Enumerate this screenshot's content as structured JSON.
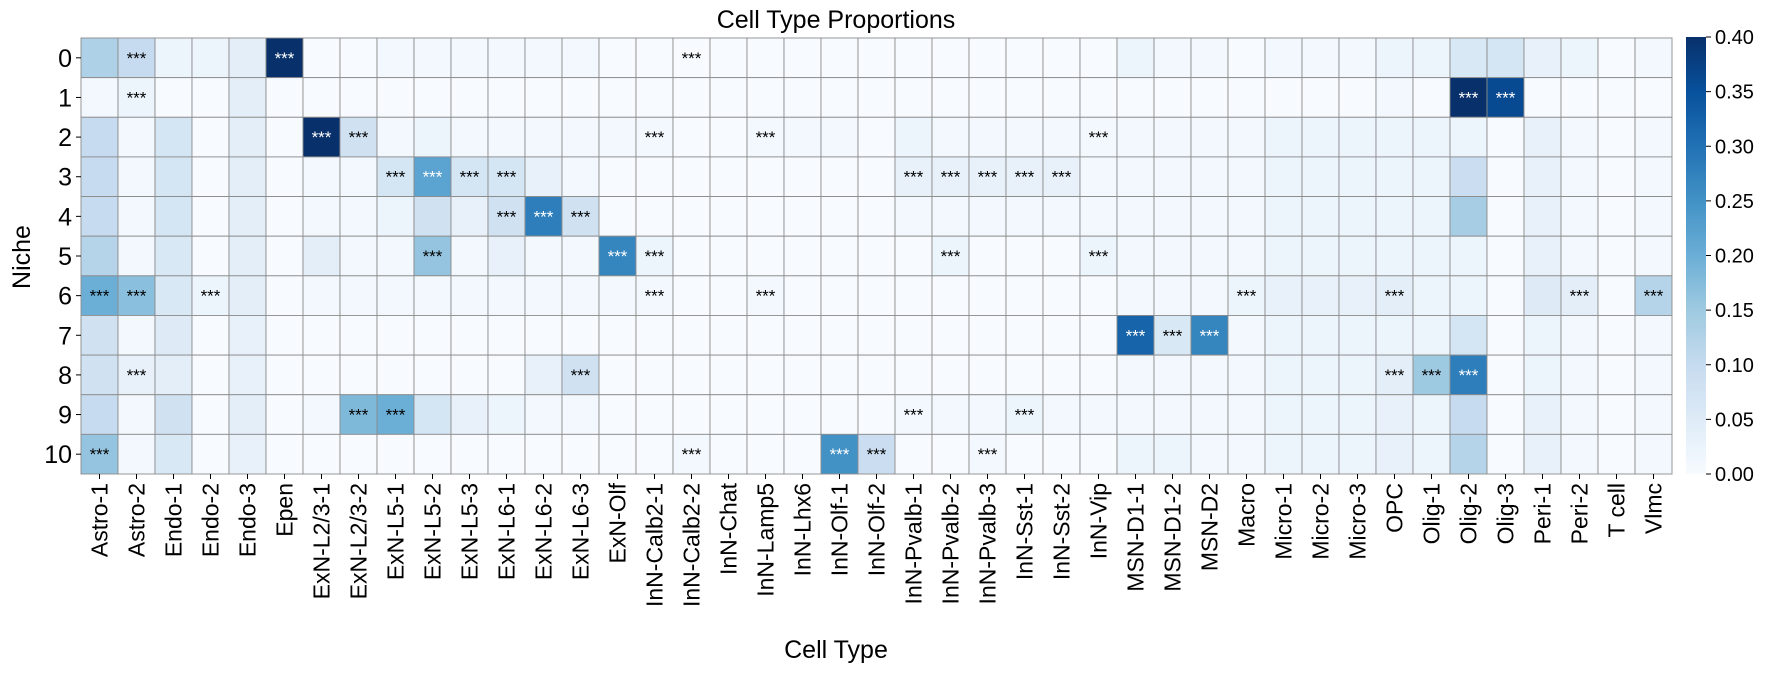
{
  "chart_data": {
    "type": "heatmap",
    "title": "Cell Type Proportions",
    "xlabel": "Cell Type",
    "ylabel": "Niche",
    "x": [
      "Astro-1",
      "Astro-2",
      "Endo-1",
      "Endo-2",
      "Endo-3",
      "Epen",
      "ExN-L2/3-1",
      "ExN-L2/3-2",
      "ExN-L5-1",
      "ExN-L5-2",
      "ExN-L5-3",
      "ExN-L6-1",
      "ExN-L6-2",
      "ExN-L6-3",
      "ExN-Olf",
      "InN-Calb2-1",
      "InN-Calb2-2",
      "InN-Chat",
      "InN-Lamp5",
      "InN-Lhx6",
      "InN-Olf-1",
      "InN-Olf-2",
      "InN-Pvalb-1",
      "InN-Pvalb-2",
      "InN-Pvalb-3",
      "InN-Sst-1",
      "InN-Sst-2",
      "InN-Vip",
      "MSN-D1-1",
      "MSN-D1-2",
      "MSN-D2",
      "Macro",
      "Micro-1",
      "Micro-2",
      "Micro-3",
      "OPC",
      "Olig-1",
      "Olig-2",
      "Olig-3",
      "Peri-1",
      "Peri-2",
      "T cell",
      "Vlmc"
    ],
    "y": [
      "0",
      "1",
      "2",
      "3",
      "4",
      "5",
      "6",
      "7",
      "8",
      "9",
      "10"
    ],
    "values": [
      [
        0.13,
        0.1,
        0.02,
        0.02,
        0.04,
        0.42,
        0.0,
        0.0,
        0.01,
        0.01,
        0.01,
        0.01,
        0.01,
        0.01,
        0.0,
        0.0,
        0.0,
        0.0,
        0.0,
        0.0,
        0.0,
        0.0,
        0.0,
        0.0,
        0.0,
        0.0,
        0.0,
        0.0,
        0.02,
        0.01,
        0.01,
        0.0,
        0.01,
        0.01,
        0.01,
        0.02,
        0.02,
        0.06,
        0.07,
        0.03,
        0.02,
        0.0,
        0.01
      ],
      [
        0.01,
        0.02,
        0.0,
        0.0,
        0.04,
        0.0,
        0.0,
        0.0,
        0.0,
        0.0,
        0.0,
        0.0,
        0.0,
        0.0,
        0.0,
        0.0,
        0.0,
        0.0,
        0.0,
        0.0,
        0.0,
        0.0,
        0.0,
        0.0,
        0.0,
        0.0,
        0.0,
        0.0,
        0.0,
        0.0,
        0.0,
        0.0,
        0.0,
        0.0,
        0.0,
        0.01,
        0.0,
        0.42,
        0.36,
        0.0,
        0.0,
        0.0,
        0.0
      ],
      [
        0.1,
        0.01,
        0.07,
        0.0,
        0.04,
        0.0,
        0.41,
        0.08,
        0.01,
        0.02,
        0.01,
        0.01,
        0.01,
        0.01,
        0.01,
        0.01,
        0.0,
        0.0,
        0.01,
        0.01,
        0.01,
        0.0,
        0.02,
        0.01,
        0.01,
        0.01,
        0.01,
        0.01,
        0.01,
        0.01,
        0.01,
        0.01,
        0.02,
        0.02,
        0.02,
        0.02,
        0.02,
        0.02,
        0.0,
        0.03,
        0.01,
        0.0,
        0.01
      ],
      [
        0.1,
        0.01,
        0.07,
        0.0,
        0.04,
        0.0,
        0.01,
        0.01,
        0.07,
        0.22,
        0.07,
        0.07,
        0.03,
        0.01,
        0.0,
        0.0,
        0.0,
        0.0,
        0.0,
        0.0,
        0.0,
        0.0,
        0.03,
        0.03,
        0.03,
        0.03,
        0.03,
        0.01,
        0.01,
        0.01,
        0.01,
        0.01,
        0.02,
        0.02,
        0.02,
        0.02,
        0.02,
        0.09,
        0.0,
        0.03,
        0.01,
        0.0,
        0.01
      ],
      [
        0.1,
        0.01,
        0.07,
        0.0,
        0.04,
        0.0,
        0.01,
        0.01,
        0.02,
        0.08,
        0.03,
        0.08,
        0.28,
        0.08,
        0.0,
        0.0,
        0.0,
        0.0,
        0.0,
        0.0,
        0.0,
        0.0,
        0.01,
        0.01,
        0.01,
        0.01,
        0.01,
        0.01,
        0.01,
        0.01,
        0.01,
        0.01,
        0.02,
        0.02,
        0.02,
        0.02,
        0.02,
        0.14,
        0.0,
        0.03,
        0.01,
        0.0,
        0.01
      ],
      [
        0.12,
        0.01,
        0.06,
        0.0,
        0.04,
        0.0,
        0.04,
        0.01,
        0.01,
        0.16,
        0.01,
        0.03,
        0.01,
        0.01,
        0.27,
        0.02,
        0.0,
        0.0,
        0.0,
        0.0,
        0.0,
        0.0,
        0.0,
        0.02,
        0.0,
        0.0,
        0.0,
        0.02,
        0.01,
        0.01,
        0.01,
        0.01,
        0.02,
        0.02,
        0.02,
        0.02,
        0.02,
        0.02,
        0.0,
        0.03,
        0.01,
        0.0,
        0.01
      ],
      [
        0.2,
        0.17,
        0.06,
        0.02,
        0.04,
        0.0,
        0.01,
        0.01,
        0.01,
        0.01,
        0.01,
        0.01,
        0.01,
        0.01,
        0.01,
        0.01,
        0.0,
        0.0,
        0.01,
        0.0,
        0.0,
        0.0,
        0.0,
        0.0,
        0.0,
        0.0,
        0.0,
        0.0,
        0.01,
        0.01,
        0.01,
        0.02,
        0.03,
        0.03,
        0.03,
        0.04,
        0.02,
        0.02,
        0.0,
        0.05,
        0.04,
        0.0,
        0.12
      ],
      [
        0.08,
        0.01,
        0.05,
        0.0,
        0.03,
        0.0,
        0.0,
        0.0,
        0.0,
        0.0,
        0.0,
        0.0,
        0.0,
        0.0,
        0.0,
        0.0,
        0.0,
        0.0,
        0.0,
        0.0,
        0.0,
        0.0,
        0.0,
        0.0,
        0.0,
        0.0,
        0.0,
        0.0,
        0.32,
        0.06,
        0.27,
        0.01,
        0.02,
        0.02,
        0.02,
        0.02,
        0.02,
        0.07,
        0.0,
        0.02,
        0.01,
        0.0,
        0.01
      ],
      [
        0.08,
        0.03,
        0.04,
        0.0,
        0.03,
        0.0,
        0.0,
        0.0,
        0.0,
        0.0,
        0.0,
        0.0,
        0.03,
        0.08,
        0.0,
        0.0,
        0.0,
        0.0,
        0.0,
        0.0,
        0.0,
        0.0,
        0.0,
        0.0,
        0.0,
        0.0,
        0.0,
        0.0,
        0.01,
        0.01,
        0.01,
        0.01,
        0.02,
        0.02,
        0.02,
        0.04,
        0.15,
        0.28,
        0.0,
        0.02,
        0.01,
        0.0,
        0.01
      ],
      [
        0.1,
        0.01,
        0.08,
        0.0,
        0.04,
        0.0,
        0.01,
        0.18,
        0.2,
        0.07,
        0.03,
        0.02,
        0.01,
        0.01,
        0.0,
        0.0,
        0.0,
        0.0,
        0.0,
        0.0,
        0.0,
        0.0,
        0.01,
        0.01,
        0.01,
        0.02,
        0.01,
        0.01,
        0.01,
        0.01,
        0.01,
        0.01,
        0.02,
        0.02,
        0.02,
        0.03,
        0.02,
        0.1,
        0.0,
        0.03,
        0.01,
        0.0,
        0.01
      ],
      [
        0.16,
        0.01,
        0.06,
        0.0,
        0.03,
        0.0,
        0.0,
        0.0,
        0.0,
        0.0,
        0.0,
        0.0,
        0.0,
        0.0,
        0.0,
        0.0,
        0.01,
        0.0,
        0.0,
        0.0,
        0.25,
        0.09,
        0.0,
        0.0,
        0.01,
        0.0,
        0.0,
        0.0,
        0.02,
        0.02,
        0.01,
        0.01,
        0.02,
        0.02,
        0.02,
        0.03,
        0.02,
        0.12,
        0.0,
        0.03,
        0.01,
        0.0,
        0.01
      ]
    ],
    "annotation_text": "***",
    "significant": [
      [
        0,
        1
      ],
      [
        0,
        5
      ],
      [
        0,
        16
      ],
      [
        1,
        1
      ],
      [
        1,
        37
      ],
      [
        1,
        38
      ],
      [
        2,
        6
      ],
      [
        2,
        7
      ],
      [
        2,
        15
      ],
      [
        2,
        18
      ],
      [
        2,
        27
      ],
      [
        3,
        8
      ],
      [
        3,
        9
      ],
      [
        3,
        10
      ],
      [
        3,
        11
      ],
      [
        3,
        22
      ],
      [
        3,
        23
      ],
      [
        3,
        24
      ],
      [
        3,
        25
      ],
      [
        3,
        26
      ],
      [
        4,
        11
      ],
      [
        4,
        12
      ],
      [
        4,
        13
      ],
      [
        5,
        9
      ],
      [
        5,
        14
      ],
      [
        5,
        15
      ],
      [
        5,
        23
      ],
      [
        5,
        27
      ],
      [
        6,
        0
      ],
      [
        6,
        1
      ],
      [
        6,
        3
      ],
      [
        6,
        15
      ],
      [
        6,
        18
      ],
      [
        6,
        31
      ],
      [
        6,
        35
      ],
      [
        6,
        40
      ],
      [
        6,
        42
      ],
      [
        7,
        28
      ],
      [
        7,
        29
      ],
      [
        7,
        30
      ],
      [
        8,
        1
      ],
      [
        8,
        13
      ],
      [
        8,
        35
      ],
      [
        8,
        36
      ],
      [
        8,
        37
      ],
      [
        9,
        7
      ],
      [
        9,
        8
      ],
      [
        9,
        22
      ],
      [
        9,
        25
      ],
      [
        10,
        0
      ],
      [
        10,
        16
      ],
      [
        10,
        20
      ],
      [
        10,
        21
      ],
      [
        10,
        24
      ]
    ],
    "colorbar": {
      "range": [
        0.0,
        0.4
      ],
      "ticks": [
        "0.00",
        "0.05",
        "0.10",
        "0.15",
        "0.20",
        "0.25",
        "0.30",
        "0.35",
        "0.40"
      ],
      "colormap": "Blues",
      "color_low": "#f7fbff",
      "color_high": "#08306b"
    },
    "grid": true
  }
}
